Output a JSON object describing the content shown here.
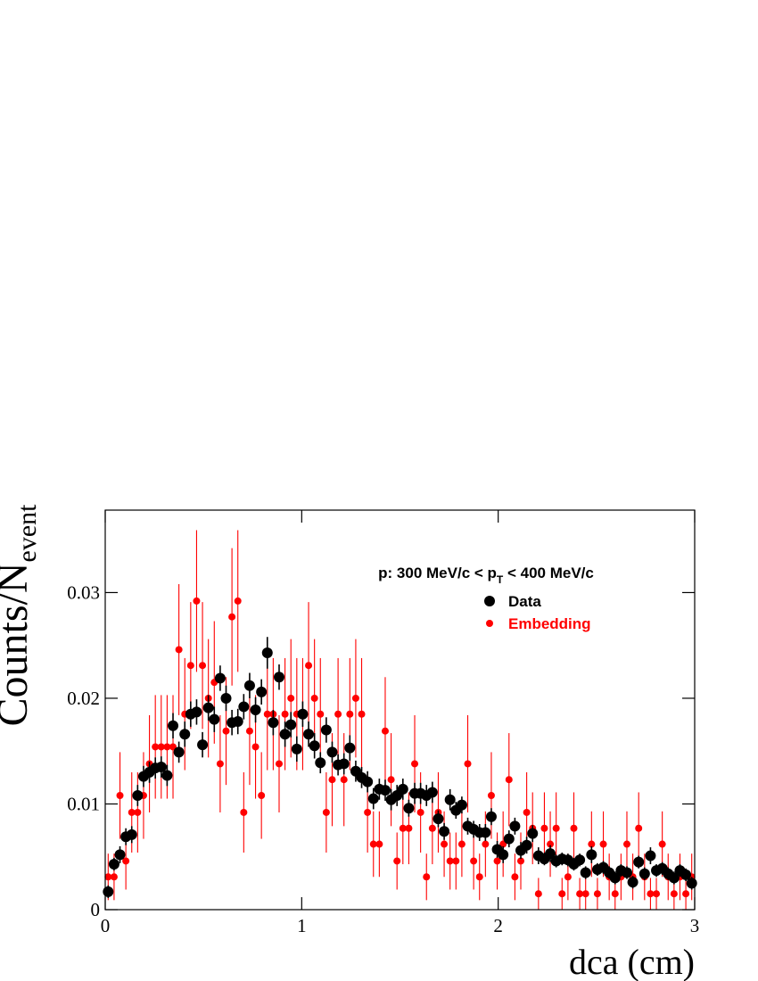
{
  "chart_data": {
    "type": "errorbar-scatter",
    "xlabel": "dca (cm)",
    "ylabel": [
      "Counts/N",
      "event"
    ],
    "annotation": [
      "p: 300 MeV/c < p",
      "T",
      " < 400 MeV/c"
    ],
    "xlim": [
      0,
      3
    ],
    "ylim": [
      0,
      0.0378
    ],
    "xticks": [
      0,
      1,
      2,
      3
    ],
    "yticks": [
      0,
      0.01,
      0.02,
      0.03
    ],
    "x": [
      0.015,
      0.045,
      0.075,
      0.105,
      0.135,
      0.165,
      0.195,
      0.225,
      0.255,
      0.285,
      0.315,
      0.345,
      0.375,
      0.405,
      0.435,
      0.465,
      0.495,
      0.525,
      0.555,
      0.585,
      0.615,
      0.645,
      0.675,
      0.705,
      0.735,
      0.765,
      0.795,
      0.825,
      0.855,
      0.885,
      0.915,
      0.945,
      0.975,
      1.005,
      1.035,
      1.065,
      1.095,
      1.125,
      1.155,
      1.185,
      1.215,
      1.245,
      1.275,
      1.305,
      1.335,
      1.365,
      1.395,
      1.425,
      1.455,
      1.485,
      1.515,
      1.545,
      1.575,
      1.605,
      1.635,
      1.665,
      1.695,
      1.725,
      1.755,
      1.785,
      1.815,
      1.845,
      1.875,
      1.905,
      1.935,
      1.965,
      1.995,
      2.025,
      2.055,
      2.085,
      2.115,
      2.145,
      2.175,
      2.205,
      2.235,
      2.265,
      2.295,
      2.325,
      2.355,
      2.385,
      2.415,
      2.445,
      2.475,
      2.505,
      2.535,
      2.565,
      2.595,
      2.625,
      2.655,
      2.685,
      2.715,
      2.745,
      2.775,
      2.805,
      2.835,
      2.865,
      2.895,
      2.925,
      2.955,
      2.985
    ],
    "series": [
      {
        "name": "Data",
        "color": "#000000",
        "marker_radius": 6,
        "values": [
          0.0017,
          0.0043,
          0.0052,
          0.0069,
          0.0071,
          0.0108,
          0.0126,
          0.013,
          0.0134,
          0.0135,
          0.0127,
          0.0174,
          0.0149,
          0.0166,
          0.0185,
          0.0187,
          0.0156,
          0.0191,
          0.018,
          0.0219,
          0.02,
          0.0177,
          0.0178,
          0.0192,
          0.0212,
          0.0189,
          0.0206,
          0.0243,
          0.0177,
          0.022,
          0.0166,
          0.0175,
          0.0152,
          0.0185,
          0.0166,
          0.0155,
          0.0139,
          0.017,
          0.0149,
          0.0137,
          0.0138,
          0.0153,
          0.0131,
          0.0125,
          0.0121,
          0.0105,
          0.0114,
          0.0113,
          0.0104,
          0.0108,
          0.0114,
          0.0096,
          0.011,
          0.011,
          0.0108,
          0.0111,
          0.0086,
          0.0074,
          0.0104,
          0.0094,
          0.0099,
          0.0079,
          0.0076,
          0.0073,
          0.0073,
          0.0088,
          0.0057,
          0.0052,
          0.0067,
          0.0079,
          0.0056,
          0.0061,
          0.0072,
          0.0051,
          0.0048,
          0.0053,
          0.0046,
          0.0048,
          0.0047,
          0.0043,
          0.0047,
          0.0035,
          0.0052,
          0.0038,
          0.004,
          0.0035,
          0.003,
          0.0037,
          0.0035,
          0.0026,
          0.0045,
          0.0034,
          0.0051,
          0.0037,
          0.0039,
          0.0034,
          0.003,
          0.0037,
          0.0033,
          0.0025
        ],
        "errors": [
          0.0006,
          0.0006,
          0.0008,
          0.0008,
          0.0008,
          0.001,
          0.001,
          0.001,
          0.001,
          0.001,
          0.001,
          0.0012,
          0.001,
          0.0012,
          0.0012,
          0.0012,
          0.0012,
          0.0012,
          0.0012,
          0.0012,
          0.0012,
          0.0012,
          0.0012,
          0.0012,
          0.0012,
          0.0012,
          0.0012,
          0.0015,
          0.0012,
          0.0012,
          0.0012,
          0.0012,
          0.0012,
          0.0012,
          0.0012,
          0.0012,
          0.001,
          0.0012,
          0.001,
          0.001,
          0.001,
          0.0012,
          0.001,
          0.001,
          0.001,
          0.001,
          0.001,
          0.001,
          0.001,
          0.001,
          0.001,
          0.0008,
          0.001,
          0.001,
          0.001,
          0.001,
          0.0008,
          0.0008,
          0.001,
          0.0008,
          0.0008,
          0.0008,
          0.0008,
          0.0008,
          0.0008,
          0.0008,
          0.0008,
          0.0008,
          0.0008,
          0.0008,
          0.0008,
          0.0008,
          0.0008,
          0.0008,
          0.0006,
          0.0008,
          0.0006,
          0.0006,
          0.0006,
          0.0006,
          0.0006,
          0.0006,
          0.0008,
          0.0006,
          0.0006,
          0.0006,
          0.0006,
          0.0006,
          0.0006,
          0.0006,
          0.0006,
          0.0006,
          0.0008,
          0.0006,
          0.0006,
          0.0006,
          0.0006,
          0.0006,
          0.0006,
          0.0006
        ]
      },
      {
        "name": "Embedding",
        "color": "#ff0000",
        "marker_radius": 4,
        "values": [
          0.0031,
          0.0031,
          0.0108,
          0.0046,
          0.0092,
          0.0092,
          0.0108,
          0.0138,
          0.0154,
          0.0154,
          0.0154,
          0.0154,
          0.0246,
          0.0185,
          0.0231,
          0.0292,
          0.0231,
          0.02,
          0.0215,
          0.0138,
          0.0169,
          0.0277,
          0.0292,
          0.0092,
          0.0169,
          0.0154,
          0.0108,
          0.0185,
          0.0185,
          0.0138,
          0.0185,
          0.02,
          0.0185,
          0.0185,
          0.0231,
          0.02,
          0.0185,
          0.0092,
          0.0123,
          0.0185,
          0.0123,
          0.0185,
          0.02,
          0.0185,
          0.0092,
          0.0062,
          0.0062,
          0.0169,
          0.0123,
          0.0046,
          0.0077,
          0.0077,
          0.0138,
          0.0092,
          0.0031,
          0.0077,
          0.0092,
          0.0062,
          0.0046,
          0.0046,
          0.0062,
          0.0138,
          0.0046,
          0.0031,
          0.0062,
          0.0108,
          0.0046,
          0.0062,
          0.0123,
          0.0031,
          0.0046,
          0.0092,
          0.0077,
          0.0015,
          0.0077,
          0.0062,
          0.0077,
          0.0015,
          0.0031,
          0.0077,
          0.0015,
          0.0015,
          0.0062,
          0.0015,
          0.0062,
          0.0031,
          0.0015,
          0.0031,
          0.0062,
          0.0031,
          0.0077,
          0.0031,
          0.0015,
          0.0015,
          0.0062,
          0.0031,
          0.0015,
          0.0031,
          0.0015,
          0.0031
        ],
        "errors": [
          0.0022,
          0.0022,
          0.0041,
          0.0027,
          0.0038,
          0.0038,
          0.0041,
          0.0046,
          0.0049,
          0.0049,
          0.0049,
          0.0049,
          0.0062,
          0.0053,
          0.006,
          0.0067,
          0.006,
          0.0056,
          0.0058,
          0.0046,
          0.0051,
          0.0065,
          0.0067,
          0.0038,
          0.0051,
          0.0049,
          0.0041,
          0.0053,
          0.0053,
          0.0046,
          0.0053,
          0.0056,
          0.0053,
          0.0053,
          0.006,
          0.0056,
          0.0053,
          0.0038,
          0.0044,
          0.0053,
          0.0044,
          0.0053,
          0.0056,
          0.0053,
          0.0038,
          0.0031,
          0.0031,
          0.0051,
          0.0044,
          0.0027,
          0.0034,
          0.0034,
          0.0046,
          0.0038,
          0.0022,
          0.0034,
          0.0038,
          0.0031,
          0.0027,
          0.0027,
          0.0031,
          0.0046,
          0.0027,
          0.0022,
          0.0031,
          0.0041,
          0.0027,
          0.0031,
          0.0044,
          0.0022,
          0.0027,
          0.0038,
          0.0034,
          0.0015,
          0.0034,
          0.0031,
          0.0034,
          0.0015,
          0.0022,
          0.0034,
          0.0015,
          0.0015,
          0.0031,
          0.0015,
          0.0031,
          0.0022,
          0.0015,
          0.0022,
          0.0031,
          0.0022,
          0.0034,
          0.0022,
          0.0015,
          0.0015,
          0.0031,
          0.0022,
          0.0015,
          0.0022,
          0.0015,
          0.0022
        ]
      }
    ]
  }
}
